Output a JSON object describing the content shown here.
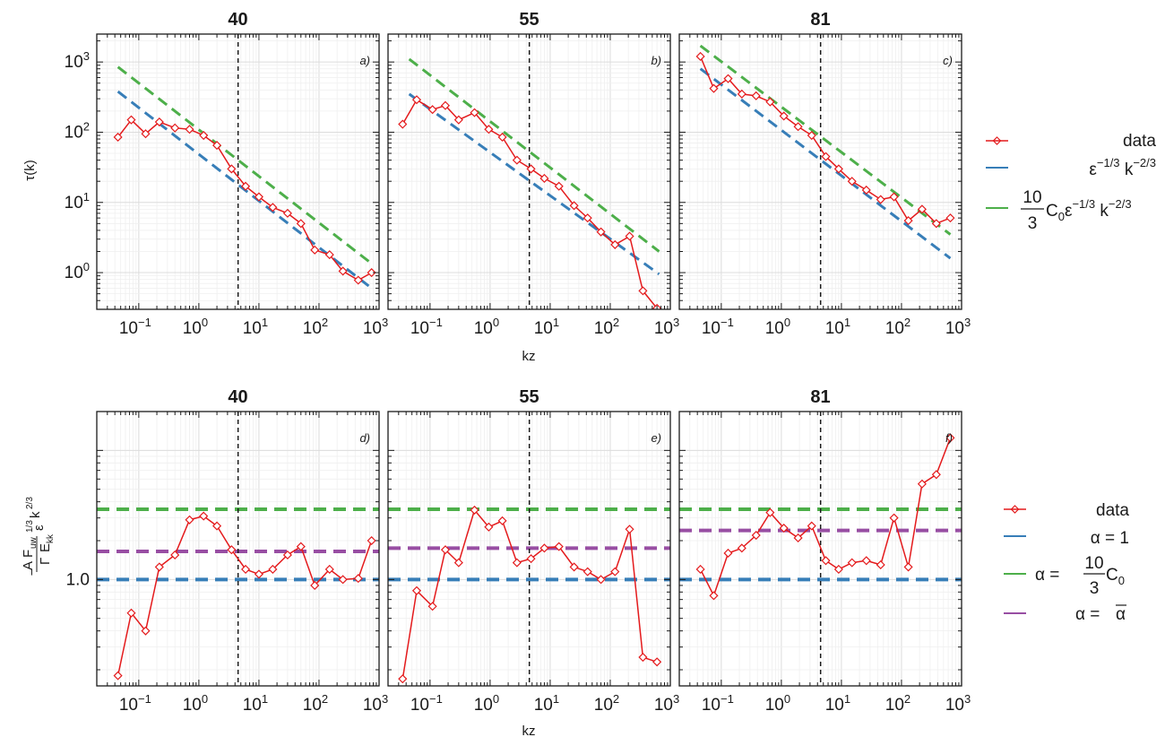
{
  "figure": {
    "x_axis_label": "kz",
    "top_y_label": "τ(k)",
    "bottom_y_label": {
      "num_a": "A",
      "num_f": "F",
      "num_sub": "uw",
      "num_sup": "1/3",
      "eps": "ε",
      "k": "k",
      "k_sup": "2/3",
      "den_gamma": "Γ",
      "den_e": "E",
      "den_sub": "kk",
      "minus": "−"
    }
  },
  "legend_top": [
    {
      "key": "data",
      "label": "data",
      "color": "#e41a1c",
      "style": "line-diamond"
    },
    {
      "key": "k23",
      "label": "ε^{-1/3} k^{-2/3}",
      "text": "ε",
      "sup1": "−1/3",
      "text2": " k",
      "sup2": "−2/3",
      "color": "#377eb8",
      "style": "line"
    },
    {
      "key": "c0k23",
      "label": "10/3 C0 ε^{-1/3} k^{-2/3}",
      "frac_num": "10",
      "frac_den": "3",
      "text": "C",
      "sub": "0",
      "text_b": "ε",
      "sup1": "−1/3",
      "text2": " k",
      "sup2": "−2/3",
      "color": "#4daf4a",
      "style": "line"
    }
  ],
  "legend_bottom": [
    {
      "key": "data",
      "label": "data",
      "color": "#e41a1c",
      "style": "line-diamond"
    },
    {
      "key": "a1",
      "label": "α = 1",
      "color": "#377eb8",
      "style": "line"
    },
    {
      "key": "ac0",
      "label": "α = 10/3 C0",
      "prefix": "α = ",
      "frac_num": "10",
      "frac_den": "3",
      "text": "C",
      "sub": "0",
      "color": "#4daf4a",
      "style": "line"
    },
    {
      "key": "abar",
      "label": "α = ᾱ",
      "prefix": "α = ",
      "text": "α",
      "color": "#984ea3",
      "style": "line"
    }
  ],
  "chart_data": [
    {
      "type": "line",
      "title": "40",
      "tag": "a)",
      "xlabel": "kz",
      "ylabel": "τ(k)",
      "x_scale": "log",
      "y_scale": "log",
      "xlim": [
        0.02,
        1000
      ],
      "ylim": [
        0.3,
        2500
      ],
      "vline_x": 4.5,
      "grid": true,
      "series": [
        {
          "name": "data",
          "color": "#e41a1c",
          "marker": "diamond",
          "x": [
            0.045,
            0.075,
            0.13,
            0.22,
            0.4,
            0.7,
            1.2,
            2,
            3.5,
            6,
            10,
            17,
            30,
            50,
            85,
            150,
            250,
            450,
            750
          ],
          "y": [
            85,
            150,
            95,
            140,
            115,
            110,
            90,
            65,
            30,
            17,
            12,
            8.5,
            7,
            5,
            2.1,
            1.8,
            1.05,
            0.78,
            1.0
          ]
        },
        {
          "name": "ε^{-1/3} k^{-2/3}",
          "color": "#377eb8",
          "dash": true,
          "x": [
            0.045,
            750
          ],
          "y": [
            380,
            0.6
          ]
        },
        {
          "name": "10/3 C0 ε^{-1/3} k^{-2/3}",
          "color": "#4daf4a",
          "dash": true,
          "x": [
            0.045,
            750
          ],
          "y": [
            850,
            1.35
          ]
        }
      ]
    },
    {
      "type": "line",
      "title": "55",
      "tag": "b)",
      "xlabel": "kz",
      "ylabel": "τ(k)",
      "x_scale": "log",
      "y_scale": "log",
      "xlim": [
        0.02,
        1000
      ],
      "ylim": [
        0.3,
        2500
      ],
      "vline_x": 4.5,
      "grid": true,
      "series": [
        {
          "name": "data",
          "color": "#e41a1c",
          "marker": "diamond",
          "x": [
            0.035,
            0.06,
            0.11,
            0.18,
            0.3,
            0.55,
            0.95,
            1.6,
            2.8,
            4.8,
            8,
            14,
            25,
            42,
            70,
            120,
            210,
            350,
            600
          ],
          "y": [
            130,
            290,
            210,
            240,
            150,
            190,
            110,
            85,
            40,
            30,
            22,
            17,
            9,
            6,
            3.8,
            2.5,
            3.3,
            0.55,
            0.31
          ]
        },
        {
          "name": "ε^{-1/3} k^{-2/3}",
          "color": "#377eb8",
          "dash": true,
          "x": [
            0.045,
            650
          ],
          "y": [
            350,
            0.95
          ]
        },
        {
          "name": "10/3 C0 ε^{-1/3} k^{-2/3}",
          "color": "#4daf4a",
          "dash": true,
          "x": [
            0.045,
            650
          ],
          "y": [
            1100,
            2.0
          ]
        }
      ]
    },
    {
      "type": "line",
      "title": "81",
      "tag": "c)",
      "xlabel": "kz",
      "ylabel": "τ(k)",
      "x_scale": "log",
      "y_scale": "log",
      "xlim": [
        0.02,
        1000
      ],
      "ylim": [
        0.3,
        2500
      ],
      "vline_x": 4.5,
      "grid": true,
      "series": [
        {
          "name": "data",
          "color": "#e41a1c",
          "marker": "diamond",
          "x": [
            0.045,
            0.075,
            0.13,
            0.22,
            0.38,
            0.65,
            1.1,
            1.9,
            3.2,
            5.5,
            9,
            15,
            26,
            45,
            75,
            130,
            220,
            380,
            650
          ],
          "y": [
            1200,
            420,
            580,
            350,
            330,
            270,
            170,
            120,
            90,
            45,
            30,
            20,
            15,
            11,
            12,
            5.5,
            8,
            5,
            6
          ]
        },
        {
          "name": "ε^{-1/3} k^{-2/3}",
          "color": "#377eb8",
          "dash": true,
          "x": [
            0.045,
            650
          ],
          "y": [
            800,
            1.6
          ]
        },
        {
          "name": "10/3 C0 ε^{-1/3} k^{-2/3}",
          "color": "#4daf4a",
          "dash": true,
          "x": [
            0.045,
            650
          ],
          "y": [
            1700,
            3.5
          ]
        }
      ]
    },
    {
      "type": "line",
      "title": "40",
      "tag": "d)",
      "xlabel": "kz",
      "ylabel": "A Fuw / Γ Ekk ε^{1/3} k^{2/3}",
      "x_scale": "log",
      "y_scale": "log",
      "xlim": [
        0.02,
        1000
      ],
      "ylim": [
        0.15,
        20
      ],
      "vline_x": 4.5,
      "grid": true,
      "series": [
        {
          "name": "data",
          "color": "#e41a1c",
          "marker": "diamond",
          "x": [
            0.045,
            0.075,
            0.13,
            0.22,
            0.4,
            0.7,
            1.2,
            2,
            3.5,
            6,
            10,
            17,
            30,
            50,
            85,
            150,
            250,
            450,
            750
          ],
          "y": [
            0.18,
            0.55,
            0.4,
            1.25,
            1.55,
            2.9,
            3.1,
            2.6,
            1.7,
            1.2,
            1.1,
            1.2,
            1.55,
            1.8,
            0.9,
            1.2,
            1.0,
            1.02,
            2.0
          ]
        },
        {
          "name": "α = 1",
          "color": "#377eb8",
          "dash": true,
          "x": [
            0.02,
            1000
          ],
          "y": [
            1.0,
            1.0
          ]
        },
        {
          "name": "α = 10/3 C0",
          "color": "#4daf4a",
          "dash": true,
          "x": [
            0.02,
            1000
          ],
          "y": [
            3.5,
            3.5
          ]
        },
        {
          "name": "α = ᾱ",
          "color": "#984ea3",
          "dash": true,
          "x": [
            0.02,
            1000
          ],
          "y": [
            1.65,
            1.65
          ]
        }
      ]
    },
    {
      "type": "line",
      "title": "55",
      "tag": "e)",
      "xlabel": "kz",
      "ylabel": "A Fuw / Γ Ekk ε^{1/3} k^{2/3}",
      "x_scale": "log",
      "y_scale": "log",
      "xlim": [
        0.02,
        1000
      ],
      "ylim": [
        0.15,
        20
      ],
      "vline_x": 4.5,
      "grid": true,
      "series": [
        {
          "name": "data",
          "color": "#e41a1c",
          "marker": "diamond",
          "x": [
            0.035,
            0.06,
            0.11,
            0.18,
            0.3,
            0.55,
            0.95,
            1.6,
            2.8,
            4.8,
            8,
            14,
            25,
            42,
            70,
            120,
            210,
            350,
            600
          ],
          "y": [
            0.17,
            0.82,
            0.62,
            1.7,
            1.35,
            3.45,
            2.55,
            2.85,
            1.35,
            1.45,
            1.75,
            1.8,
            1.25,
            1.15,
            1.0,
            1.15,
            2.45,
            0.25,
            0.23
          ]
        },
        {
          "name": "α = 1",
          "color": "#377eb8",
          "dash": true,
          "x": [
            0.02,
            1000
          ],
          "y": [
            1.0,
            1.0
          ]
        },
        {
          "name": "α = 10/3 C0",
          "color": "#4daf4a",
          "dash": true,
          "x": [
            0.02,
            1000
          ],
          "y": [
            3.5,
            3.5
          ]
        },
        {
          "name": "α = ᾱ",
          "color": "#984ea3",
          "dash": true,
          "x": [
            0.02,
            1000
          ],
          "y": [
            1.75,
            1.75
          ]
        }
      ]
    },
    {
      "type": "line",
      "title": "81",
      "tag": "f)",
      "xlabel": "kz",
      "ylabel": "A Fuw / Γ Ekk ε^{1/3} k^{2/3}",
      "x_scale": "log",
      "y_scale": "log",
      "xlim": [
        0.02,
        1000
      ],
      "ylim": [
        0.15,
        20
      ],
      "vline_x": 4.5,
      "grid": true,
      "series": [
        {
          "name": "data",
          "color": "#e41a1c",
          "marker": "diamond",
          "x": [
            0.045,
            0.075,
            0.13,
            0.22,
            0.38,
            0.65,
            1.1,
            1.9,
            3.2,
            5.5,
            9,
            15,
            26,
            45,
            75,
            130,
            220,
            380,
            650
          ],
          "y": [
            1.2,
            0.75,
            1.6,
            1.75,
            2.2,
            3.3,
            2.5,
            2.1,
            2.6,
            1.4,
            1.2,
            1.35,
            1.4,
            1.3,
            3.0,
            1.25,
            5.5,
            6.5,
            12.5
          ]
        },
        {
          "name": "α = 1",
          "color": "#377eb8",
          "dash": true,
          "x": [
            0.02,
            1000
          ],
          "y": [
            1.0,
            1.0
          ]
        },
        {
          "name": "α = 10/3 C0",
          "color": "#4daf4a",
          "dash": true,
          "x": [
            0.02,
            1000
          ],
          "y": [
            3.5,
            3.5
          ]
        },
        {
          "name": "α = ᾱ",
          "color": "#984ea3",
          "dash": true,
          "x": [
            0.02,
            1000
          ],
          "y": [
            2.4,
            2.4
          ]
        }
      ]
    }
  ]
}
